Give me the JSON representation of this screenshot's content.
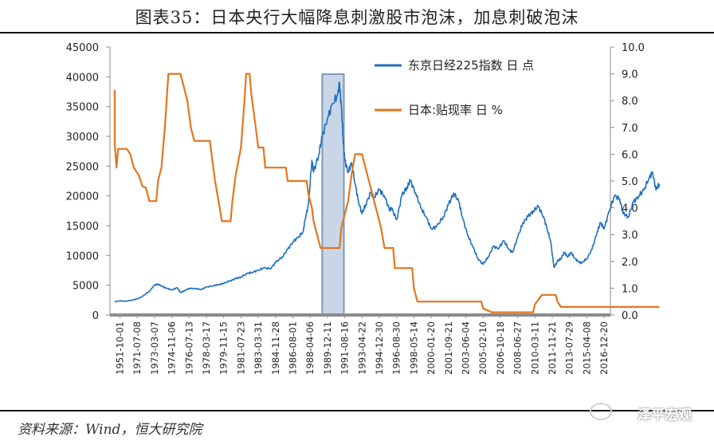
{
  "title": "图表35：日本央行大幅降息刺激股市泡沫，加息刺破泡沫",
  "source": "资料来源：Wind，恒大研究院",
  "watermark": "泽平宏观",
  "chart_data": {
    "type": "line",
    "x_tick_labels": [
      "1951-10-01",
      "1971-07-08",
      "1973-03-07",
      "1974-11-06",
      "1976-07-13",
      "1978-03-17",
      "1979-11-15",
      "1981-07-23",
      "1983-03-31",
      "1984-11-28",
      "1986-08-01",
      "1988-04-06",
      "1989-12-11",
      "1991-08-16",
      "1993-04-22",
      "1994-12-30",
      "1996-08-30",
      "1998-05-14",
      "2000-01-20",
      "2001-09-21",
      "2003-06-04",
      "2005-02-10",
      "2006-10-18",
      "2008-06-27",
      "2010-03-11",
      "2011-11-21",
      "2013-07-29",
      "2015-04-08",
      "2016-12-20"
    ],
    "y_left": {
      "min": 0,
      "max": 45000,
      "ticks": [
        "0",
        "5000",
        "10000",
        "15000",
        "20000",
        "25000",
        "30000",
        "35000",
        "40000",
        "45000"
      ]
    },
    "y_right": {
      "min": 0,
      "max": 10,
      "ticks": [
        "0.0",
        "1.0",
        "2.0",
        "3.0",
        "4.0",
        "5.0",
        "6.0",
        "7.0",
        "8.0",
        "9.0",
        "10.0"
      ]
    },
    "highlight": {
      "from": 12.0,
      "to": 13.25,
      "color": "#c9d6e8",
      "border": "#7f97b8"
    },
    "series": [
      {
        "name": "东京日经225指数 日 点",
        "axis": "left",
        "color": "#1f6fbd",
        "points": [
          [
            0,
            2200
          ],
          [
            0.3,
            2400
          ],
          [
            0.6,
            2300
          ],
          [
            1,
            2500
          ],
          [
            1.3,
            2700
          ],
          [
            1.6,
            3100
          ],
          [
            2,
            4000
          ],
          [
            2.3,
            5000
          ],
          [
            2.5,
            5200
          ],
          [
            2.8,
            4700
          ],
          [
            3,
            4500
          ],
          [
            3.3,
            4200
          ],
          [
            3.6,
            4600
          ],
          [
            3.8,
            3800
          ],
          [
            4,
            4000
          ],
          [
            4.3,
            4500
          ],
          [
            4.7,
            4400
          ],
          [
            5,
            4300
          ],
          [
            5.3,
            4700
          ],
          [
            5.7,
            4900
          ],
          [
            6,
            5100
          ],
          [
            6.3,
            5300
          ],
          [
            6.7,
            5800
          ],
          [
            7,
            6100
          ],
          [
            7.3,
            6400
          ],
          [
            7.7,
            7000
          ],
          [
            8,
            7200
          ],
          [
            8.3,
            7500
          ],
          [
            8.6,
            7900
          ],
          [
            9,
            7800
          ],
          [
            9.3,
            8800
          ],
          [
            9.7,
            9800
          ],
          [
            10,
            11000
          ],
          [
            10.3,
            12300
          ],
          [
            10.6,
            13000
          ],
          [
            10.9,
            14000
          ],
          [
            11,
            16000
          ],
          [
            11.2,
            18500
          ],
          [
            11.4,
            26000
          ],
          [
            11.5,
            24000
          ],
          [
            11.8,
            27000
          ],
          [
            12,
            30000
          ],
          [
            12.3,
            33000
          ],
          [
            12.6,
            35500
          ],
          [
            12.9,
            37000
          ],
          [
            13.0,
            39000
          ],
          [
            13.1,
            35000
          ],
          [
            13.2,
            30000
          ],
          [
            13.3,
            26000
          ],
          [
            13.5,
            24000
          ],
          [
            13.7,
            25500
          ],
          [
            13.9,
            22000
          ],
          [
            14.1,
            19000
          ],
          [
            14.3,
            17000
          ],
          [
            14.5,
            18500
          ],
          [
            14.8,
            20500
          ],
          [
            15,
            19800
          ],
          [
            15.3,
            21000
          ],
          [
            15.6,
            20000
          ],
          [
            15.9,
            17500
          ],
          [
            16,
            18000
          ],
          [
            16.3,
            16000
          ],
          [
            16.6,
            20000
          ],
          [
            16.9,
            21500
          ],
          [
            17.1,
            22500
          ],
          [
            17.4,
            20500
          ],
          [
            17.7,
            18000
          ],
          [
            18,
            16500
          ],
          [
            18.3,
            14500
          ],
          [
            18.6,
            14800
          ],
          [
            19,
            16500
          ],
          [
            19.3,
            18500
          ],
          [
            19.6,
            20500
          ],
          [
            19.9,
            19000
          ],
          [
            20.1,
            16500
          ],
          [
            20.4,
            13500
          ],
          [
            20.7,
            11500
          ],
          [
            21,
            9500
          ],
          [
            21.3,
            8500
          ],
          [
            21.6,
            9800
          ],
          [
            21.9,
            11500
          ],
          [
            22.2,
            11200
          ],
          [
            22.5,
            12500
          ],
          [
            22.8,
            11000
          ],
          [
            23,
            10500
          ],
          [
            23.3,
            13000
          ],
          [
            23.6,
            15500
          ],
          [
            23.9,
            16500
          ],
          [
            24.2,
            17500
          ],
          [
            24.5,
            18200
          ],
          [
            24.8,
            16500
          ],
          [
            25,
            14500
          ],
          [
            25.2,
            12500
          ],
          [
            25.4,
            8000
          ],
          [
            25.6,
            9000
          ],
          [
            25.8,
            9500
          ],
          [
            26,
            10500
          ],
          [
            26.2,
            9800
          ],
          [
            26.4,
            10500
          ],
          [
            26.6,
            9500
          ],
          [
            26.8,
            9000
          ],
          [
            27,
            8700
          ],
          [
            27.3,
            9500
          ],
          [
            27.6,
            11000
          ],
          [
            27.9,
            14000
          ],
          [
            28.1,
            15500
          ],
          [
            28.3,
            14500
          ],
          [
            28.6,
            17500
          ],
          [
            28.9,
            20000
          ],
          [
            29.2,
            19500
          ],
          [
            29.4,
            17000
          ],
          [
            29.7,
            16500
          ],
          [
            30,
            19000
          ],
          [
            30.3,
            20000
          ],
          [
            30.6,
            21000
          ],
          [
            30.9,
            23000
          ],
          [
            31.1,
            24000
          ],
          [
            31.3,
            21000
          ],
          [
            31.5,
            22000
          ]
        ]
      },
      {
        "name": "日本:贴现率 日 %",
        "axis": "right",
        "color": "#e3761e",
        "points": [
          [
            0,
            8.4
          ],
          [
            0,
            6.4
          ],
          [
            0.1,
            5.5
          ],
          [
            0.2,
            6.2
          ],
          [
            0.7,
            6.2
          ],
          [
            0.9,
            6.0
          ],
          [
            1.1,
            5.5
          ],
          [
            1.4,
            5.2
          ],
          [
            1.6,
            4.8
          ],
          [
            1.8,
            4.75
          ],
          [
            2,
            4.25
          ],
          [
            2.4,
            4.25
          ],
          [
            2.5,
            5.0
          ],
          [
            2.7,
            5.5
          ],
          [
            2.9,
            7.0
          ],
          [
            3,
            8.0
          ],
          [
            3.1,
            9.0
          ],
          [
            3.8,
            9.0
          ],
          [
            4,
            8.5
          ],
          [
            4.2,
            8.0
          ],
          [
            4.4,
            7.0
          ],
          [
            4.6,
            6.5
          ],
          [
            5.5,
            6.5
          ],
          [
            5.6,
            6.0
          ],
          [
            5.8,
            5.0
          ],
          [
            6.0,
            4.25
          ],
          [
            6.2,
            3.5
          ],
          [
            6.7,
            3.5
          ],
          [
            6.8,
            4.25
          ],
          [
            7.0,
            5.25
          ],
          [
            7.3,
            6.25
          ],
          [
            7.5,
            8.0
          ],
          [
            7.6,
            9.0
          ],
          [
            7.8,
            9.0
          ],
          [
            7.9,
            8.25
          ],
          [
            8.1,
            7.25
          ],
          [
            8.3,
            6.25
          ],
          [
            8.6,
            6.25
          ],
          [
            8.7,
            5.5
          ],
          [
            9.9,
            5.5
          ],
          [
            10.0,
            5.0
          ],
          [
            11.1,
            5.0
          ],
          [
            11.2,
            4.5
          ],
          [
            11.4,
            4.0
          ],
          [
            11.5,
            3.5
          ],
          [
            11.7,
            3.0
          ],
          [
            11.9,
            2.5
          ],
          [
            13.0,
            2.5
          ],
          [
            13.1,
            3.25
          ],
          [
            13.3,
            3.75
          ],
          [
            13.5,
            4.25
          ],
          [
            13.7,
            5.25
          ],
          [
            13.9,
            6.0
          ],
          [
            14.3,
            6.0
          ],
          [
            14.5,
            5.5
          ],
          [
            14.7,
            5.0
          ],
          [
            14.9,
            4.5
          ],
          [
            15.2,
            3.75
          ],
          [
            15.4,
            3.25
          ],
          [
            15.6,
            2.5
          ],
          [
            16.1,
            2.5
          ],
          [
            16.2,
            1.75
          ],
          [
            17.2,
            1.75
          ],
          [
            17.3,
            1.0
          ],
          [
            17.5,
            0.5
          ],
          [
            21.2,
            0.5
          ],
          [
            21.3,
            0.25
          ],
          [
            21.8,
            0.1
          ],
          [
            24.2,
            0.1
          ],
          [
            24.3,
            0.4
          ],
          [
            24.7,
            0.75
          ],
          [
            25.5,
            0.75
          ],
          [
            25.6,
            0.5
          ],
          [
            25.8,
            0.3
          ],
          [
            31.5,
            0.3
          ]
        ]
      }
    ]
  }
}
